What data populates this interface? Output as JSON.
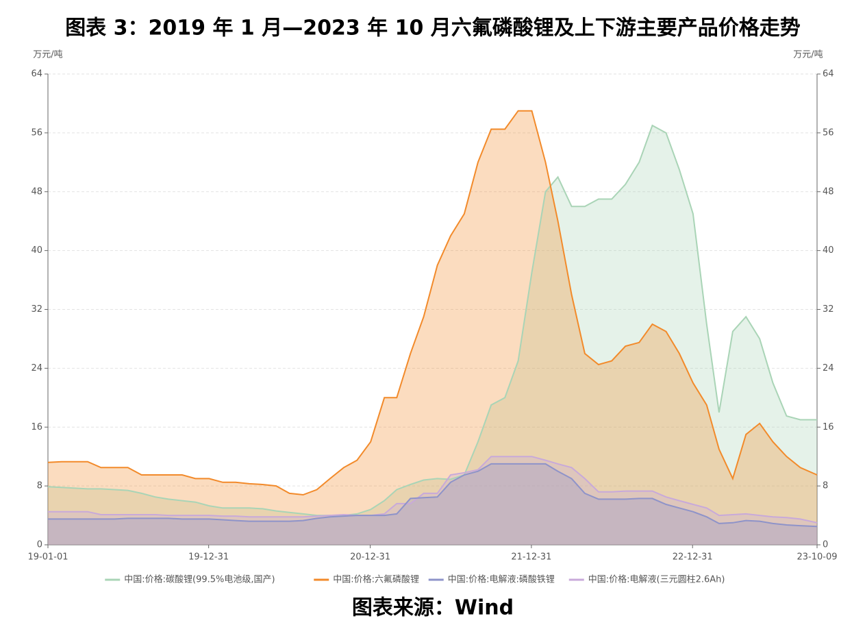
{
  "chart_data": {
    "type": "area",
    "title": "图表 3：2019 年 1 月—2023 年 10 月六氟磷酸锂及上下游主要产品价格走势",
    "y_label": "万元/吨",
    "y2_label": "万元/吨",
    "source": "图表来源：Wind",
    "x": [
      "19-01-01",
      "19-02-01",
      "19-03-01",
      "19-04-01",
      "19-05-01",
      "19-06-01",
      "19-07-01",
      "19-08-01",
      "19-09-01",
      "19-10-01",
      "19-11-01",
      "19-12-01",
      "20-01-01",
      "20-02-01",
      "20-03-01",
      "20-04-01",
      "20-05-01",
      "20-06-01",
      "20-07-01",
      "20-08-01",
      "20-09-01",
      "20-10-01",
      "20-11-01",
      "20-12-01",
      "21-01-01",
      "21-02-01",
      "21-03-01",
      "21-04-01",
      "21-05-01",
      "21-06-01",
      "21-07-01",
      "21-08-01",
      "21-09-01",
      "21-10-01",
      "21-11-01",
      "21-12-01",
      "22-01-01",
      "22-02-01",
      "22-03-01",
      "22-04-01",
      "22-05-01",
      "22-06-01",
      "22-07-01",
      "22-08-01",
      "22-09-01",
      "22-10-01",
      "22-11-01",
      "22-12-01",
      "23-01-01",
      "23-02-01",
      "23-03-01",
      "23-04-01",
      "23-05-01",
      "23-06-01",
      "23-07-01",
      "23-08-01",
      "23-09-01",
      "23-10-09"
    ],
    "xlim": [
      "19-01-01",
      "23-10-09"
    ],
    "xticks": [
      "19-01-01",
      "19-12-31",
      "20-12-31",
      "21-12-31",
      "22-12-31",
      "23-10-09"
    ],
    "ylim": [
      0,
      64
    ],
    "yticks": [
      0,
      8,
      16,
      24,
      32,
      40,
      48,
      56,
      64
    ],
    "y2lim": [
      0,
      64
    ],
    "y2ticks": [
      0,
      8,
      16,
      24,
      32,
      40,
      48,
      56,
      64
    ],
    "grid": true,
    "series": [
      {
        "name": "中国:价格:碳酸锂(99.5%电池级,国产)",
        "color": "#a9d4b6",
        "values": [
          7.9,
          7.8,
          7.7,
          7.6,
          7.6,
          7.5,
          7.4,
          7.0,
          6.5,
          6.2,
          6.0,
          5.8,
          5.3,
          5.0,
          5.0,
          5.0,
          4.9,
          4.6,
          4.4,
          4.2,
          4.0,
          4.0,
          4.0,
          4.2,
          4.8,
          6.0,
          7.5,
          8.2,
          8.8,
          9.0,
          8.9,
          9.5,
          14,
          19,
          20,
          25,
          37,
          48,
          50,
          46,
          46,
          47,
          47,
          49,
          52,
          57,
          56,
          51,
          45,
          30,
          18,
          29,
          31,
          28,
          22,
          17.5,
          17,
          17
        ]
      },
      {
        "name": "中国:价格:六氟磷酸锂",
        "color": "#f28a2a",
        "values": [
          11.2,
          11.3,
          11.3,
          11.3,
          10.5,
          10.5,
          10.5,
          9.5,
          9.5,
          9.5,
          9.5,
          9.0,
          9.0,
          8.5,
          8.5,
          8.3,
          8.2,
          8.0,
          7.0,
          6.8,
          7.5,
          9.0,
          10.5,
          11.5,
          14,
          20,
          20,
          26,
          31,
          38,
          42,
          45,
          52,
          56.5,
          56.5,
          59,
          59,
          52,
          44,
          34,
          26,
          24.5,
          25,
          27,
          27.5,
          30,
          29,
          26,
          22,
          19,
          13,
          9,
          15,
          16.5,
          14,
          12,
          10.5,
          9.5
        ]
      },
      {
        "name": "中国:价格:电解液:磷酸铁锂",
        "color": "#8e93c9",
        "values": [
          3.5,
          3.5,
          3.5,
          3.5,
          3.5,
          3.5,
          3.6,
          3.6,
          3.6,
          3.6,
          3.5,
          3.5,
          3.5,
          3.4,
          3.3,
          3.2,
          3.2,
          3.2,
          3.2,
          3.3,
          3.6,
          3.8,
          3.9,
          4.0,
          4.0,
          4.0,
          4.2,
          6.3,
          6.4,
          6.5,
          8.5,
          9.5,
          10,
          11,
          11,
          11,
          11,
          11,
          10,
          9,
          7,
          6.2,
          6.2,
          6.2,
          6.3,
          6.3,
          5.5,
          5.0,
          4.5,
          3.8,
          2.9,
          3.0,
          3.3,
          3.2,
          2.9,
          2.7,
          2.6,
          2.5
        ]
      },
      {
        "name": "中国:价格:电解液(三元圆柱2.6Ah)",
        "color": "#c8a9da",
        "values": [
          4.5,
          4.5,
          4.5,
          4.5,
          4.1,
          4.1,
          4.1,
          4.1,
          4.1,
          4.0,
          4.0,
          4.0,
          4.0,
          3.9,
          3.9,
          3.8,
          3.8,
          3.8,
          3.8,
          3.8,
          3.9,
          4.0,
          4.1,
          4.0,
          4.0,
          4.2,
          5.6,
          5.6,
          7.0,
          7.0,
          9.5,
          9.8,
          10.2,
          12,
          12,
          12,
          12,
          11.5,
          11,
          10.5,
          9.0,
          7.2,
          7.2,
          7.3,
          7.3,
          7.3,
          6.5,
          6.0,
          5.5,
          5.0,
          4.0,
          4.1,
          4.2,
          4.0,
          3.8,
          3.7,
          3.5,
          3.0
        ]
      }
    ]
  }
}
